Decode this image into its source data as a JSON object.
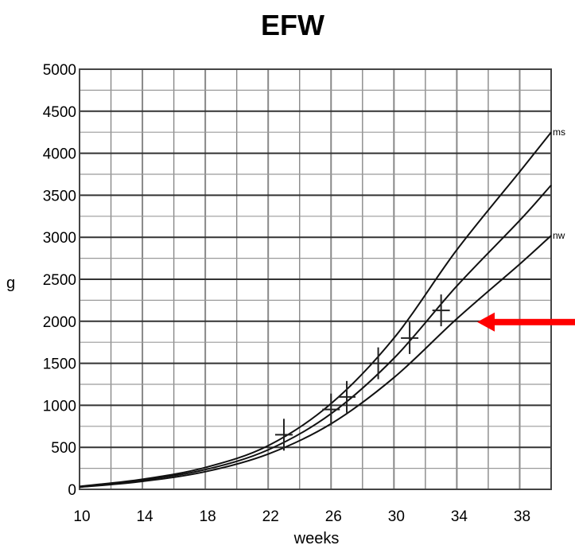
{
  "chart_data": {
    "type": "line",
    "title": "EFW",
    "xlabel": "weeks",
    "ylabel": "g",
    "xlim": [
      10,
      40
    ],
    "ylim": [
      0,
      5000
    ],
    "x_ticks": [
      10,
      14,
      18,
      22,
      26,
      30,
      34,
      38
    ],
    "y_ticks": [
      0,
      500,
      1000,
      1500,
      2000,
      2500,
      3000,
      3500,
      4000,
      4500,
      5000
    ],
    "grid": true,
    "series": [
      {
        "name": "ms",
        "x": [
          10,
          14,
          18,
          22,
          26,
          30,
          34,
          38,
          40
        ],
        "values": [
          35,
          120,
          260,
          520,
          1020,
          1800,
          2850,
          3780,
          4250
        ]
      },
      {
        "name": "",
        "x": [
          10,
          14,
          18,
          22,
          26,
          30,
          34,
          38,
          40
        ],
        "values": [
          30,
          110,
          235,
          470,
          900,
          1560,
          2420,
          3200,
          3620
        ]
      },
      {
        "name": "nw",
        "x": [
          10,
          14,
          18,
          22,
          26,
          30,
          34,
          38,
          40
        ],
        "values": [
          25,
          95,
          210,
          420,
          780,
          1330,
          2030,
          2680,
          3020
        ]
      }
    ],
    "measurements": {
      "x": [
        23,
        26,
        27,
        29,
        31,
        33
      ],
      "values": [
        650,
        950,
        1100,
        1500,
        1800,
        2130
      ]
    },
    "annotation_color": "#ff0000"
  }
}
